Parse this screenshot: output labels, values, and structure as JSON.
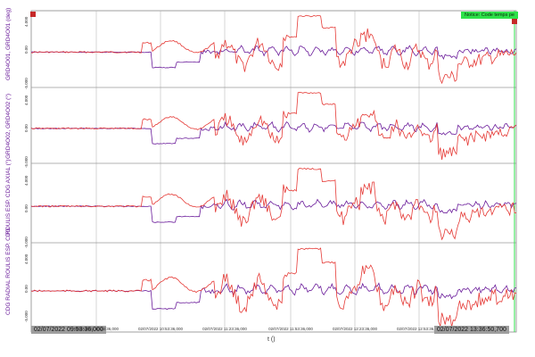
{
  "notice": "Notice: Code temps pe",
  "x_axis": {
    "label": "t ()",
    "start_label": "02/07/2022 09:53:36,000",
    "end_label": "02/07/2022 13:36:50,700",
    "ticks": [
      "02/07/2022 10:23:36,000",
      "02/07/2022 10:53:36,000",
      "02/07/2022 11:23:36,000",
      "02/07/2022 11:53:36,000",
      "02/07/2022 12:23:36,000",
      "02/07/2022 12:53:36,000"
    ]
  },
  "channels": [
    {
      "label": "GRD4O01, GRD4O01 (deg)",
      "y_max": "4.000",
      "y_mid": "0.00",
      "y_min": "-5.000"
    },
    {
      "label": "GRD4O02, GRD4O02 (°)",
      "y_max": "4.000",
      "y_mid": "0.00",
      "y_min": "-5.000"
    },
    {
      "label": "ROULIS ESP. CDG AXIAL (°)",
      "y_max": "4.000",
      "y_mid": "0.00",
      "y_min": "-5.000"
    },
    {
      "label": "CDG RADIAL ROULIS ESP. CDG",
      "y_max": "4.000",
      "y_mid": "0.00",
      "y_min": "-5.000"
    }
  ],
  "colors": {
    "series_red": "#e53935",
    "series_purple": "#6a1b9a",
    "grid": "#b8b8b8",
    "notice_bg": "#2ee24a"
  }
}
